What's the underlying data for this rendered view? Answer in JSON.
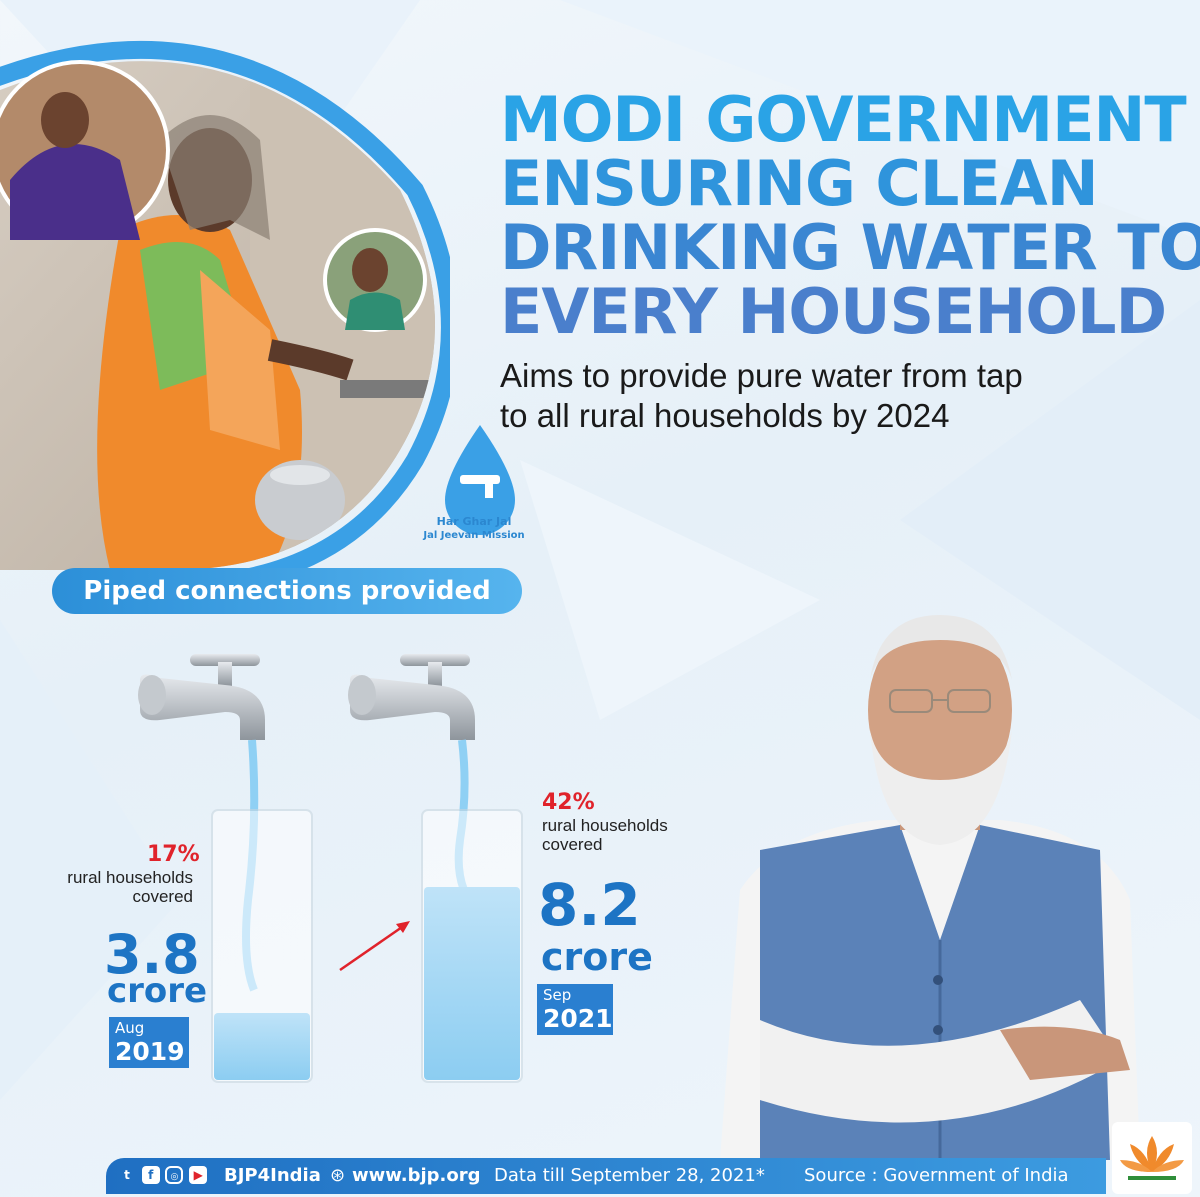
{
  "headline": {
    "line1": "MODI GOVERNMENT",
    "line2": "ENSURING CLEAN",
    "line3": "DRINKING WATER TO",
    "line4": "EVERY HOUSEHOLD"
  },
  "subhead": {
    "line1": "Aims to provide pure water from tap",
    "line2": "to all rural households by 2024"
  },
  "mission": {
    "title": "Har Ghar Jal",
    "subtitle": "Jal Jeevan Mission"
  },
  "badge": "Piped connections provided",
  "stats": [
    {
      "percent": "17%",
      "label_line1": "rural households",
      "label_line2": "covered",
      "value": "3.8",
      "unit": "crore",
      "month": "Aug",
      "year": "2019",
      "fill": 0.25
    },
    {
      "percent": "42%",
      "label_line1": "rural households",
      "label_line2": "covered",
      "value": "8.2",
      "unit": "crore",
      "month": "Sep",
      "year": "2021",
      "fill": 0.72
    }
  ],
  "footer": {
    "handle": "BJP4India",
    "website": "www.bjp.org",
    "data_note": "Data till September 28, 2021*",
    "source": "Source : Government of India"
  },
  "colors": {
    "accent": "#2a7fd0",
    "headline": "#2f94dc",
    "percent": "#e0232b",
    "water": "#9fd3f3"
  }
}
